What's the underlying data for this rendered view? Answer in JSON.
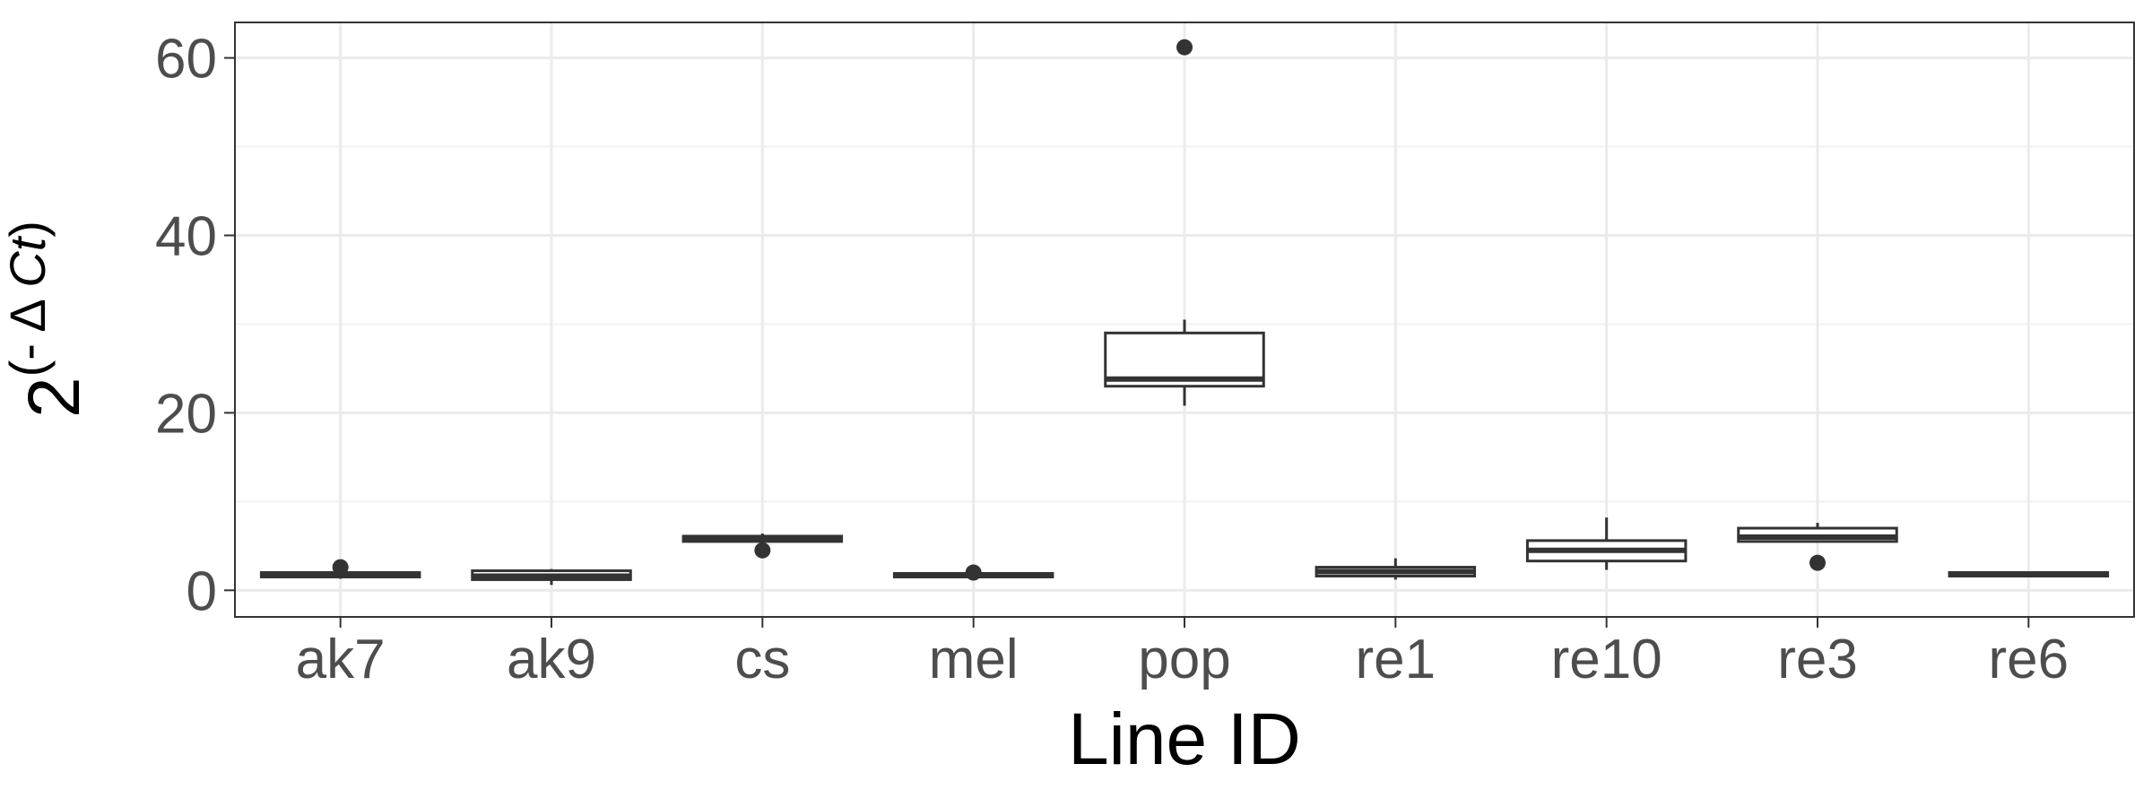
{
  "chart_data": {
    "type": "box",
    "xlabel": "Line ID",
    "ylabel": {
      "base": "2",
      "exp_open": "(- Δ ",
      "exp_var": "Ct",
      "exp_close": ")"
    },
    "ylim": [
      -3,
      64
    ],
    "yticks": [
      0,
      20,
      40,
      60
    ],
    "grid": true,
    "categories": [
      "ak7",
      "ak9",
      "cs",
      "mel",
      "pop",
      "re1",
      "re10",
      "re3",
      "re6"
    ],
    "boxes": [
      {
        "category": "ak7",
        "whisker_low": 1.3,
        "q1": 1.5,
        "median": 1.8,
        "q3": 2.0,
        "whisker_high": 2.1,
        "outliers": [
          2.6
        ]
      },
      {
        "category": "ak9",
        "whisker_low": 0.6,
        "q1": 1.2,
        "median": 1.6,
        "q3": 2.2,
        "whisker_high": 2.4,
        "outliers": []
      },
      {
        "category": "cs",
        "whisker_low": 5.3,
        "q1": 5.5,
        "median": 5.8,
        "q3": 6.1,
        "whisker_high": 6.4,
        "outliers": [
          4.5
        ]
      },
      {
        "category": "mel",
        "whisker_low": 1.3,
        "q1": 1.5,
        "median": 1.7,
        "q3": 1.9,
        "whisker_high": 2.0,
        "outliers": [
          2.0
        ]
      },
      {
        "category": "pop",
        "whisker_low": 20.8,
        "q1": 23.0,
        "median": 23.8,
        "q3": 29.0,
        "whisker_high": 30.5,
        "outliers": [
          61.2
        ]
      },
      {
        "category": "re1",
        "whisker_low": 1.2,
        "q1": 1.6,
        "median": 2.1,
        "q3": 2.6,
        "whisker_high": 3.6,
        "outliers": []
      },
      {
        "category": "re10",
        "whisker_low": 2.3,
        "q1": 3.3,
        "median": 4.5,
        "q3": 5.6,
        "whisker_high": 8.2,
        "outliers": []
      },
      {
        "category": "re3",
        "whisker_low": 5.4,
        "q1": 5.5,
        "median": 6.0,
        "q3": 7.0,
        "whisker_high": 7.6,
        "outliers": [
          3.1
        ]
      },
      {
        "category": "re6",
        "whisker_low": 1.5,
        "q1": 1.6,
        "median": 1.8,
        "q3": 2.0,
        "whisker_high": 2.1,
        "outliers": []
      }
    ]
  }
}
